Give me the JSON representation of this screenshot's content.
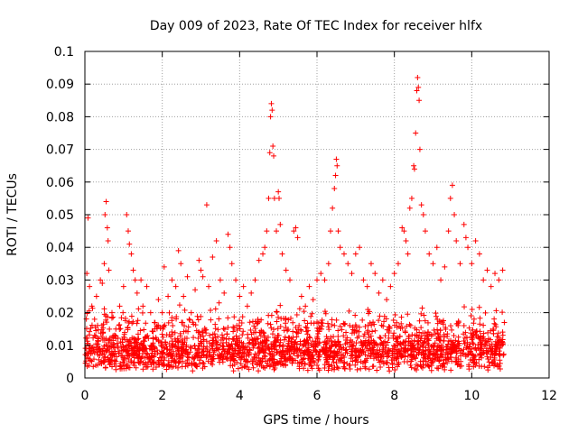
{
  "chart_data": {
    "type": "scatter",
    "title": "Day 009 of 2023, Rate Of TEC Index for receiver hlfx",
    "xlabel": "GPS time / hours",
    "ylabel": "ROTI / TECUs",
    "xlim": [
      0,
      12
    ],
    "ylim": [
      0,
      0.1
    ],
    "xticks": [
      0,
      2,
      4,
      6,
      8,
      10,
      12
    ],
    "xtick_labels": [
      "0",
      "2",
      "4",
      "6",
      "8",
      "10",
      "12"
    ],
    "yticks": [
      0,
      0.01,
      0.02,
      0.03,
      0.04,
      0.05,
      0.06,
      0.07,
      0.08,
      0.09,
      0.1
    ],
    "ytick_labels": [
      "0",
      "0.01",
      "0.02",
      "0.03",
      "0.04",
      "0.05",
      "0.06",
      "0.07",
      "0.08",
      "0.09",
      "0.1"
    ],
    "grid": true,
    "marker": "plus",
    "color": "#ff0000",
    "series": [
      {
        "name": "ROTI",
        "points": [
          [
            0.05,
            0.032
          ],
          [
            0.08,
            0.049
          ],
          [
            0.12,
            0.028
          ],
          [
            0.18,
            0.022
          ],
          [
            0.25,
            0.018
          ],
          [
            0.3,
            0.025
          ],
          [
            0.35,
            0.012
          ],
          [
            0.4,
            0.03
          ],
          [
            0.45,
            0.029
          ],
          [
            0.5,
            0.035
          ],
          [
            0.52,
            0.05
          ],
          [
            0.55,
            0.054
          ],
          [
            0.58,
            0.046
          ],
          [
            0.6,
            0.042
          ],
          [
            0.62,
            0.033
          ],
          [
            0.7,
            0.02
          ],
          [
            0.8,
            0.015
          ],
          [
            0.9,
            0.022
          ],
          [
            1.0,
            0.028
          ],
          [
            1.08,
            0.05
          ],
          [
            1.12,
            0.045
          ],
          [
            1.15,
            0.041
          ],
          [
            1.2,
            0.038
          ],
          [
            1.25,
            0.033
          ],
          [
            1.3,
            0.03
          ],
          [
            1.35,
            0.026
          ],
          [
            1.45,
            0.03
          ],
          [
            1.5,
            0.022
          ],
          [
            1.6,
            0.028
          ],
          [
            1.7,
            0.02
          ],
          [
            1.8,
            0.017
          ],
          [
            1.9,
            0.024
          ],
          [
            2.0,
            0.02
          ],
          [
            2.05,
            0.034
          ],
          [
            2.15,
            0.025
          ],
          [
            2.25,
            0.03
          ],
          [
            2.35,
            0.028
          ],
          [
            2.42,
            0.039
          ],
          [
            2.48,
            0.035
          ],
          [
            2.55,
            0.025
          ],
          [
            2.65,
            0.031
          ],
          [
            2.75,
            0.02
          ],
          [
            2.85,
            0.027
          ],
          [
            2.95,
            0.036
          ],
          [
            3.0,
            0.033
          ],
          [
            3.05,
            0.031
          ],
          [
            3.15,
            0.053
          ],
          [
            3.2,
            0.028
          ],
          [
            3.3,
            0.037
          ],
          [
            3.4,
            0.042
          ],
          [
            3.5,
            0.03
          ],
          [
            3.6,
            0.026
          ],
          [
            3.7,
            0.044
          ],
          [
            3.75,
            0.04
          ],
          [
            3.8,
            0.035
          ],
          [
            3.9,
            0.03
          ],
          [
            4.0,
            0.025
          ],
          [
            4.1,
            0.028
          ],
          [
            4.2,
            0.022
          ],
          [
            4.3,
            0.026
          ],
          [
            4.4,
            0.03
          ],
          [
            4.5,
            0.036
          ],
          [
            4.6,
            0.038
          ],
          [
            4.65,
            0.04
          ],
          [
            4.7,
            0.045
          ],
          [
            4.75,
            0.055
          ],
          [
            4.78,
            0.069
          ],
          [
            4.8,
            0.08
          ],
          [
            4.82,
            0.084
          ],
          [
            4.84,
            0.082
          ],
          [
            4.86,
            0.071
          ],
          [
            4.88,
            0.068
          ],
          [
            4.9,
            0.055
          ],
          [
            4.95,
            0.045
          ],
          [
            5.0,
            0.057
          ],
          [
            5.02,
            0.055
          ],
          [
            5.05,
            0.047
          ],
          [
            5.1,
            0.038
          ],
          [
            5.2,
            0.033
          ],
          [
            5.3,
            0.03
          ],
          [
            5.4,
            0.045
          ],
          [
            5.45,
            0.046
          ],
          [
            5.5,
            0.043
          ],
          [
            5.6,
            0.025
          ],
          [
            5.7,
            0.022
          ],
          [
            5.8,
            0.028
          ],
          [
            5.9,
            0.024
          ],
          [
            6.0,
            0.03
          ],
          [
            6.1,
            0.032
          ],
          [
            6.2,
            0.03
          ],
          [
            6.3,
            0.035
          ],
          [
            6.35,
            0.045
          ],
          [
            6.4,
            0.052
          ],
          [
            6.45,
            0.058
          ],
          [
            6.48,
            0.062
          ],
          [
            6.5,
            0.067
          ],
          [
            6.52,
            0.065
          ],
          [
            6.55,
            0.045
          ],
          [
            6.6,
            0.04
          ],
          [
            6.7,
            0.038
          ],
          [
            6.8,
            0.035
          ],
          [
            6.9,
            0.032
          ],
          [
            7.0,
            0.038
          ],
          [
            7.1,
            0.04
          ],
          [
            7.2,
            0.03
          ],
          [
            7.3,
            0.028
          ],
          [
            7.4,
            0.035
          ],
          [
            7.5,
            0.032
          ],
          [
            7.6,
            0.026
          ],
          [
            7.7,
            0.03
          ],
          [
            7.8,
            0.024
          ],
          [
            7.9,
            0.028
          ],
          [
            8.0,
            0.032
          ],
          [
            8.1,
            0.035
          ],
          [
            8.2,
            0.046
          ],
          [
            8.25,
            0.045
          ],
          [
            8.3,
            0.042
          ],
          [
            8.35,
            0.038
          ],
          [
            8.4,
            0.052
          ],
          [
            8.45,
            0.055
          ],
          [
            8.5,
            0.065
          ],
          [
            8.52,
            0.064
          ],
          [
            8.55,
            0.075
          ],
          [
            8.58,
            0.088
          ],
          [
            8.6,
            0.092
          ],
          [
            8.62,
            0.089
          ],
          [
            8.64,
            0.085
          ],
          [
            8.66,
            0.07
          ],
          [
            8.7,
            0.053
          ],
          [
            8.75,
            0.05
          ],
          [
            8.8,
            0.045
          ],
          [
            8.9,
            0.038
          ],
          [
            9.0,
            0.035
          ],
          [
            9.1,
            0.04
          ],
          [
            9.2,
            0.03
          ],
          [
            9.3,
            0.034
          ],
          [
            9.4,
            0.045
          ],
          [
            9.45,
            0.055
          ],
          [
            9.5,
            0.059
          ],
          [
            9.55,
            0.05
          ],
          [
            9.6,
            0.042
          ],
          [
            9.7,
            0.035
          ],
          [
            9.8,
            0.047
          ],
          [
            9.85,
            0.043
          ],
          [
            9.9,
            0.04
          ],
          [
            10.0,
            0.035
          ],
          [
            10.1,
            0.042
          ],
          [
            10.2,
            0.038
          ],
          [
            10.3,
            0.03
          ],
          [
            10.4,
            0.033
          ],
          [
            10.5,
            0.028
          ],
          [
            10.6,
            0.032
          ],
          [
            10.7,
            0.03
          ],
          [
            10.8,
            0.033
          ]
        ]
      }
    ],
    "dense_band": {
      "x_range": [
        0,
        10.85
      ],
      "y_range": [
        0.002,
        0.025
      ],
      "count": 2200,
      "seed": 9
    }
  }
}
